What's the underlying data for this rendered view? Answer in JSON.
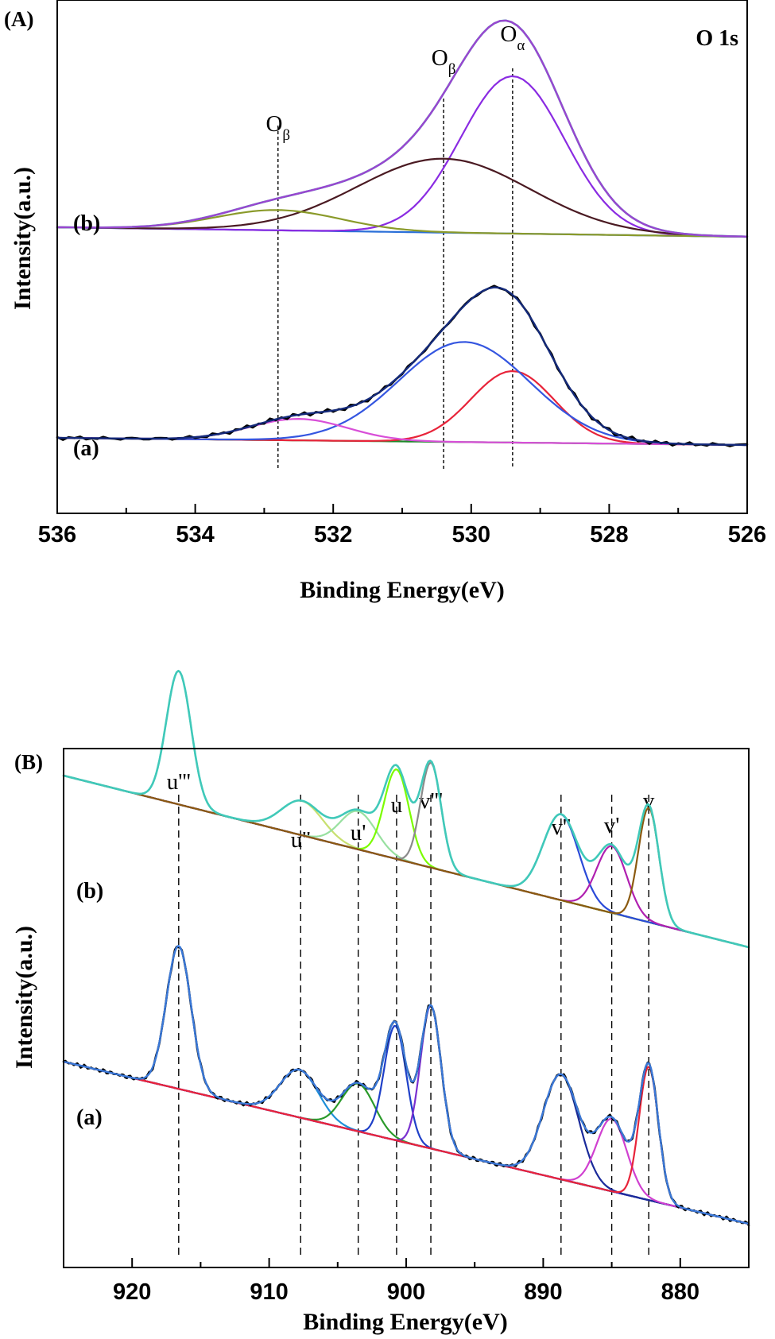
{
  "chart_data": [
    {
      "type": "line",
      "panel_label": "(A)",
      "corner_label": "O 1s",
      "xlabel": "Binding Energy(eV)",
      "ylabel": "Intensity(a.u.)",
      "xlim": [
        536,
        526
      ],
      "xticks": [
        536,
        534,
        532,
        530,
        528,
        526
      ],
      "x_reversed": true,
      "y_ticks_labeled": false,
      "grid": false,
      "peak_markers": [
        {
          "base": "O",
          "sub": "β",
          "x": 532.8
        },
        {
          "base": "O",
          "sub": "β",
          "x": 530.4
        },
        {
          "base": "O",
          "sub": "α",
          "x": 529.4
        }
      ],
      "samples": [
        {
          "label": "(b)",
          "offset": 1.0,
          "background": {
            "start": 0.04,
            "end": 0.0
          },
          "components": [
            {
              "center": 529.4,
              "height": 0.66,
              "width": 0.75,
              "color": "#8a2be2"
            },
            {
              "center": 530.4,
              "height": 0.31,
              "width": 1.25,
              "color": "#4a1a22"
            },
            {
              "center": 532.8,
              "height": 0.085,
              "width": 0.9,
              "color": "#8a9a2a"
            }
          ],
          "envelope_colors": [
            "#2bb5a6",
            "#9a45d0"
          ]
        },
        {
          "label": "(a)",
          "offset": 0.0,
          "background": {
            "start": 0.03,
            "end": 0.0
          },
          "components": [
            {
              "center": 529.4,
              "height": 0.3,
              "width": 0.6,
              "color": "#e8243a"
            },
            {
              "center": 530.1,
              "height": 0.42,
              "width": 0.95,
              "color": "#3556e0"
            },
            {
              "center": 532.5,
              "height": 0.09,
              "width": 0.7,
              "color": "#d84fd8"
            }
          ],
          "envelope_colors": [
            "#000000",
            "#142a7a"
          ]
        }
      ]
    },
    {
      "type": "line",
      "panel_label": "(B)",
      "xlabel": "Binding Energy(eV)",
      "ylabel": "Intensity(a.u.)",
      "xlim": [
        925,
        875
      ],
      "xticks": [
        920,
        910,
        900,
        890,
        880
      ],
      "x_reversed": true,
      "y_ticks_labeled": false,
      "grid": false,
      "peak_markers": [
        {
          "label": "u'''",
          "x": 916.6
        },
        {
          "label": "u''",
          "x": 907.7
        },
        {
          "label": "u'",
          "x": 903.5
        },
        {
          "label": "u",
          "x": 900.7
        },
        {
          "label": "v'''",
          "x": 898.2
        },
        {
          "label": "v''",
          "x": 888.7
        },
        {
          "label": "v'",
          "x": 885.0
        },
        {
          "label": "v",
          "x": 882.3
        }
      ],
      "samples": [
        {
          "label": "(b)",
          "offset": 1.0,
          "background": {
            "start": 0.9,
            "end": 0.0
          },
          "components": [
            {
              "center": 916.6,
              "height": 0.7,
              "width": 0.9,
              "color": "#55c8d8"
            },
            {
              "center": 907.6,
              "height": 0.18,
              "width": 1.5,
              "color": "#c8e070"
            },
            {
              "center": 903.5,
              "height": 0.2,
              "width": 1.3,
              "color": "#98e0a0"
            },
            {
              "center": 900.7,
              "height": 0.47,
              "width": 0.9,
              "color": "#7cfc00"
            },
            {
              "center": 898.2,
              "height": 0.55,
              "width": 0.75,
              "color": "#8a8a8a"
            },
            {
              "center": 888.7,
              "height": 0.45,
              "width": 1.3,
              "color": "#2a4ad8"
            },
            {
              "center": 885.0,
              "height": 0.35,
              "width": 1.1,
              "color": "#b020b0"
            },
            {
              "center": 882.3,
              "height": 0.6,
              "width": 0.75,
              "color": "#8b5a10"
            }
          ],
          "envelope_colors": [
            "#40c9b9"
          ]
        },
        {
          "label": "(a)",
          "offset": 0.0,
          "background": {
            "start": 0.85,
            "end": 0.0
          },
          "components": [
            {
              "center": 916.6,
              "height": 0.75,
              "width": 0.9,
              "color": "#1f8fd8"
            },
            {
              "center": 907.8,
              "height": 0.25,
              "width": 1.4,
              "color": "#1f8fd8"
            },
            {
              "center": 903.5,
              "height": 0.25,
              "width": 1.2,
              "color": "#2a9a2a"
            },
            {
              "center": 900.8,
              "height": 0.6,
              "width": 0.8,
              "color": "#1f40c8"
            },
            {
              "center": 898.2,
              "height": 0.75,
              "width": 0.75,
              "color": "#7a30d0"
            },
            {
              "center": 888.7,
              "height": 0.55,
              "width": 1.3,
              "color": "#1a2a9a"
            },
            {
              "center": 885.0,
              "height": 0.38,
              "width": 1.1,
              "color": "#d040d0"
            },
            {
              "center": 882.3,
              "height": 0.7,
              "width": 0.7,
              "color": "#e8243a"
            }
          ],
          "envelope_colors": [
            "#000000",
            "#3a78d8"
          ]
        }
      ]
    }
  ]
}
